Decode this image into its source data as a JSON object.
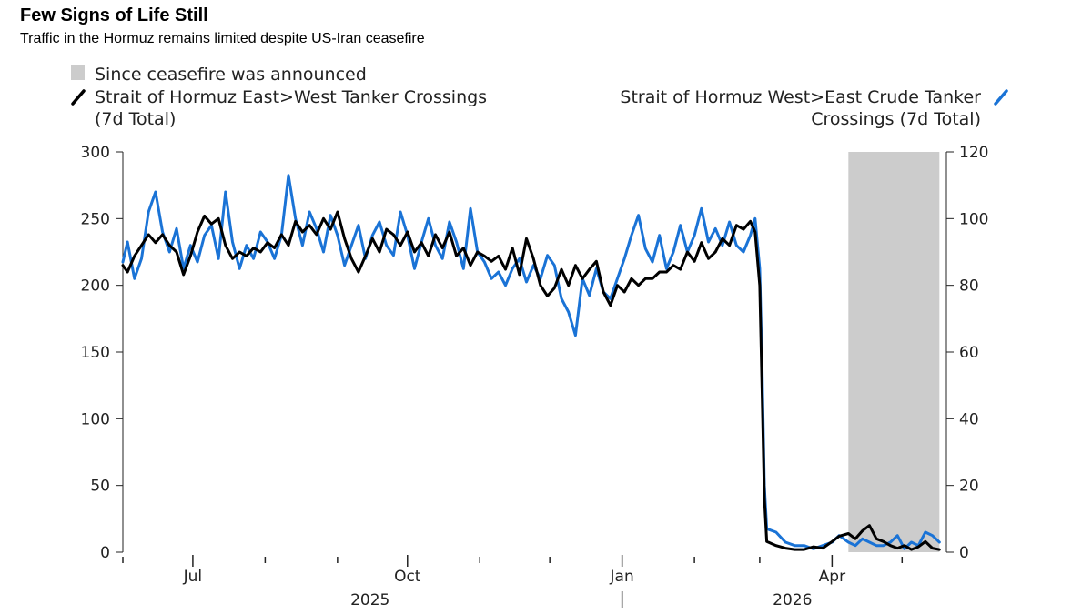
{
  "header": {
    "title": "Few Signs of Life Still",
    "subtitle": "Traffic in the Hormuz remains limited despite US-Iran ceasefire"
  },
  "chart_data": {
    "type": "line",
    "legend": {
      "shade": "Since ceasefire was announced",
      "left_series": [
        "Strait of Hormuz East>West Tanker Crossings",
        "(7d Total)"
      ],
      "right_series": [
        "Strait of Hormuz West>East Crude Tanker",
        "Crossings (7d Total)"
      ]
    },
    "colors": {
      "left": "#000000",
      "right": "#1a73d6",
      "shade": "#cccccc"
    },
    "x_range": [
      "2025-06-01",
      "2026-05-20"
    ],
    "x_ticks": [
      {
        "date": "2025-07-01",
        "label": "Jul"
      },
      {
        "date": "2025-10-01",
        "label": "Oct"
      },
      {
        "date": "2026-01-01",
        "label": "Jan"
      },
      {
        "date": "2026-04-01",
        "label": "Apr"
      }
    ],
    "x_minor_ticks": [
      "2025-06-01",
      "2025-08-01",
      "2025-09-01",
      "2025-11-01",
      "2025-12-01",
      "2026-02-01",
      "2026-03-01",
      "2026-05-01"
    ],
    "year_labels": [
      {
        "date": "2025-09-15",
        "label": "2025"
      },
      {
        "date": "2026-03-15",
        "label": "2026"
      }
    ],
    "year_divider": "2026-01-01",
    "y_left": {
      "range": [
        0,
        300
      ],
      "ticks": [
        0,
        50,
        100,
        150,
        200,
        250,
        300
      ]
    },
    "y_right": {
      "range": [
        0,
        120
      ],
      "ticks": [
        0,
        20,
        40,
        60,
        80,
        100,
        120
      ]
    },
    "shaded_period": [
      "2026-04-08",
      "2026-05-17"
    ],
    "series": [
      {
        "axis": "left",
        "points": [
          [
            "2025-06-01",
            215
          ],
          [
            "2025-06-03",
            210
          ],
          [
            "2025-06-06",
            222
          ],
          [
            "2025-06-09",
            230
          ],
          [
            "2025-06-12",
            238
          ],
          [
            "2025-06-15",
            232
          ],
          [
            "2025-06-18",
            238
          ],
          [
            "2025-06-21",
            230
          ],
          [
            "2025-06-24",
            225
          ],
          [
            "2025-06-27",
            208
          ],
          [
            "2025-06-30",
            222
          ],
          [
            "2025-07-03",
            240
          ],
          [
            "2025-07-06",
            252
          ],
          [
            "2025-07-09",
            246
          ],
          [
            "2025-07-12",
            250
          ],
          [
            "2025-07-15",
            230
          ],
          [
            "2025-07-18",
            220
          ],
          [
            "2025-07-21",
            225
          ],
          [
            "2025-07-24",
            222
          ],
          [
            "2025-07-27",
            228
          ],
          [
            "2025-07-30",
            225
          ],
          [
            "2025-08-02",
            232
          ],
          [
            "2025-08-05",
            228
          ],
          [
            "2025-08-08",
            238
          ],
          [
            "2025-08-11",
            230
          ],
          [
            "2025-08-14",
            248
          ],
          [
            "2025-08-17",
            240
          ],
          [
            "2025-08-20",
            245
          ],
          [
            "2025-08-23",
            238
          ],
          [
            "2025-08-26",
            250
          ],
          [
            "2025-08-29",
            242
          ],
          [
            "2025-09-01",
            255
          ],
          [
            "2025-09-04",
            235
          ],
          [
            "2025-09-07",
            220
          ],
          [
            "2025-09-10",
            210
          ],
          [
            "2025-09-13",
            222
          ],
          [
            "2025-09-16",
            235
          ],
          [
            "2025-09-19",
            225
          ],
          [
            "2025-09-22",
            242
          ],
          [
            "2025-09-25",
            238
          ],
          [
            "2025-09-28",
            230
          ],
          [
            "2025-10-01",
            240
          ],
          [
            "2025-10-04",
            225
          ],
          [
            "2025-10-07",
            232
          ],
          [
            "2025-10-10",
            222
          ],
          [
            "2025-10-13",
            238
          ],
          [
            "2025-10-16",
            228
          ],
          [
            "2025-10-19",
            240
          ],
          [
            "2025-10-22",
            222
          ],
          [
            "2025-10-25",
            228
          ],
          [
            "2025-10-28",
            215
          ],
          [
            "2025-10-31",
            225
          ],
          [
            "2025-11-03",
            222
          ],
          [
            "2025-11-06",
            218
          ],
          [
            "2025-11-09",
            222
          ],
          [
            "2025-11-12",
            212
          ],
          [
            "2025-11-15",
            228
          ],
          [
            "2025-11-18",
            208
          ],
          [
            "2025-11-21",
            235
          ],
          [
            "2025-11-24",
            220
          ],
          [
            "2025-11-27",
            200
          ],
          [
            "2025-11-30",
            192
          ],
          [
            "2025-12-03",
            198
          ],
          [
            "2025-12-06",
            212
          ],
          [
            "2025-12-09",
            200
          ],
          [
            "2025-12-12",
            215
          ],
          [
            "2025-12-15",
            205
          ],
          [
            "2025-12-18",
            212
          ],
          [
            "2025-12-21",
            218
          ],
          [
            "2025-12-24",
            195
          ],
          [
            "2025-12-27",
            185
          ],
          [
            "2025-12-30",
            200
          ],
          [
            "2026-01-02",
            195
          ],
          [
            "2026-01-05",
            205
          ],
          [
            "2026-01-08",
            200
          ],
          [
            "2026-01-11",
            205
          ],
          [
            "2026-01-14",
            205
          ],
          [
            "2026-01-17",
            210
          ],
          [
            "2026-01-20",
            210
          ],
          [
            "2026-01-23",
            215
          ],
          [
            "2026-01-26",
            212
          ],
          [
            "2026-01-29",
            225
          ],
          [
            "2026-02-01",
            218
          ],
          [
            "2026-02-04",
            232
          ],
          [
            "2026-02-07",
            220
          ],
          [
            "2026-02-10",
            225
          ],
          [
            "2026-02-13",
            235
          ],
          [
            "2026-02-16",
            230
          ],
          [
            "2026-02-19",
            245
          ],
          [
            "2026-02-22",
            242
          ],
          [
            "2026-02-25",
            248
          ],
          [
            "2026-02-27",
            240
          ],
          [
            "2026-03-01",
            200
          ],
          [
            "2026-03-02",
            120
          ],
          [
            "2026-03-03",
            40
          ],
          [
            "2026-03-04",
            8
          ],
          [
            "2026-03-08",
            5
          ],
          [
            "2026-03-12",
            3
          ],
          [
            "2026-03-16",
            2
          ],
          [
            "2026-03-20",
            2
          ],
          [
            "2026-03-24",
            4
          ],
          [
            "2026-03-28",
            3
          ],
          [
            "2026-04-01",
            8
          ],
          [
            "2026-04-04",
            12
          ],
          [
            "2026-04-08",
            14
          ],
          [
            "2026-04-11",
            10
          ],
          [
            "2026-04-14",
            16
          ],
          [
            "2026-04-17",
            20
          ],
          [
            "2026-04-20",
            10
          ],
          [
            "2026-04-23",
            8
          ],
          [
            "2026-04-26",
            5
          ],
          [
            "2026-04-29",
            3
          ],
          [
            "2026-05-02",
            5
          ],
          [
            "2026-05-05",
            2
          ],
          [
            "2026-05-08",
            4
          ],
          [
            "2026-05-11",
            8
          ],
          [
            "2026-05-14",
            3
          ],
          [
            "2026-05-17",
            2
          ]
        ]
      },
      {
        "axis": "right",
        "points": [
          [
            "2025-06-01",
            87
          ],
          [
            "2025-06-03",
            93
          ],
          [
            "2025-06-06",
            82
          ],
          [
            "2025-06-09",
            88
          ],
          [
            "2025-06-12",
            102
          ],
          [
            "2025-06-15",
            108
          ],
          [
            "2025-06-18",
            96
          ],
          [
            "2025-06-21",
            90
          ],
          [
            "2025-06-24",
            97
          ],
          [
            "2025-06-27",
            85
          ],
          [
            "2025-06-30",
            92
          ],
          [
            "2025-07-03",
            87
          ],
          [
            "2025-07-06",
            95
          ],
          [
            "2025-07-09",
            98
          ],
          [
            "2025-07-12",
            88
          ],
          [
            "2025-07-15",
            108
          ],
          [
            "2025-07-18",
            93
          ],
          [
            "2025-07-21",
            85
          ],
          [
            "2025-07-24",
            92
          ],
          [
            "2025-07-27",
            88
          ],
          [
            "2025-07-30",
            96
          ],
          [
            "2025-08-02",
            93
          ],
          [
            "2025-08-05",
            88
          ],
          [
            "2025-08-08",
            95
          ],
          [
            "2025-08-11",
            113
          ],
          [
            "2025-08-14",
            100
          ],
          [
            "2025-08-17",
            92
          ],
          [
            "2025-08-20",
            102
          ],
          [
            "2025-08-23",
            97
          ],
          [
            "2025-08-26",
            90
          ],
          [
            "2025-08-29",
            101
          ],
          [
            "2025-09-01",
            95
          ],
          [
            "2025-09-04",
            86
          ],
          [
            "2025-09-07",
            92
          ],
          [
            "2025-09-10",
            98
          ],
          [
            "2025-09-13",
            88
          ],
          [
            "2025-09-16",
            95
          ],
          [
            "2025-09-19",
            99
          ],
          [
            "2025-09-22",
            92
          ],
          [
            "2025-09-25",
            89
          ],
          [
            "2025-09-28",
            102
          ],
          [
            "2025-10-01",
            95
          ],
          [
            "2025-10-04",
            85
          ],
          [
            "2025-10-07",
            93
          ],
          [
            "2025-10-10",
            100
          ],
          [
            "2025-10-13",
            92
          ],
          [
            "2025-10-16",
            88
          ],
          [
            "2025-10-19",
            99
          ],
          [
            "2025-10-22",
            93
          ],
          [
            "2025-10-25",
            85
          ],
          [
            "2025-10-28",
            103
          ],
          [
            "2025-10-31",
            90
          ],
          [
            "2025-11-03",
            87
          ],
          [
            "2025-11-06",
            82
          ],
          [
            "2025-11-09",
            84
          ],
          [
            "2025-11-12",
            80
          ],
          [
            "2025-11-15",
            85
          ],
          [
            "2025-11-18",
            88
          ],
          [
            "2025-11-21",
            81
          ],
          [
            "2025-11-24",
            86
          ],
          [
            "2025-11-27",
            82
          ],
          [
            "2025-11-30",
            89
          ],
          [
            "2025-12-03",
            86
          ],
          [
            "2025-12-06",
            76
          ],
          [
            "2025-12-09",
            72
          ],
          [
            "2025-12-12",
            65
          ],
          [
            "2025-12-15",
            82
          ],
          [
            "2025-12-18",
            77
          ],
          [
            "2025-12-21",
            85
          ],
          [
            "2025-12-24",
            78
          ],
          [
            "2025-12-27",
            76
          ],
          [
            "2025-12-30",
            82
          ],
          [
            "2026-01-02",
            88
          ],
          [
            "2026-01-05",
            95
          ],
          [
            "2026-01-08",
            101
          ],
          [
            "2026-01-11",
            91
          ],
          [
            "2026-01-14",
            87
          ],
          [
            "2026-01-17",
            95
          ],
          [
            "2026-01-20",
            85
          ],
          [
            "2026-01-23",
            90
          ],
          [
            "2026-01-26",
            98
          ],
          [
            "2026-01-29",
            90
          ],
          [
            "2026-02-01",
            95
          ],
          [
            "2026-02-04",
            103
          ],
          [
            "2026-02-07",
            93
          ],
          [
            "2026-02-10",
            97
          ],
          [
            "2026-02-13",
            92
          ],
          [
            "2026-02-16",
            99
          ],
          [
            "2026-02-19",
            92
          ],
          [
            "2026-02-22",
            90
          ],
          [
            "2026-02-25",
            95
          ],
          [
            "2026-02-27",
            100
          ],
          [
            "2026-03-01",
            85
          ],
          [
            "2026-03-02",
            55
          ],
          [
            "2026-03-03",
            20
          ],
          [
            "2026-03-04",
            7
          ],
          [
            "2026-03-08",
            6
          ],
          [
            "2026-03-12",
            3
          ],
          [
            "2026-03-16",
            2
          ],
          [
            "2026-03-20",
            2
          ],
          [
            "2026-03-24",
            1
          ],
          [
            "2026-03-28",
            2
          ],
          [
            "2026-04-01",
            3
          ],
          [
            "2026-04-04",
            5
          ],
          [
            "2026-04-08",
            3
          ],
          [
            "2026-04-11",
            2
          ],
          [
            "2026-04-14",
            4
          ],
          [
            "2026-04-17",
            3
          ],
          [
            "2026-04-20",
            2
          ],
          [
            "2026-04-23",
            2
          ],
          [
            "2026-04-26",
            3
          ],
          [
            "2026-04-29",
            5
          ],
          [
            "2026-05-02",
            1
          ],
          [
            "2026-05-05",
            3
          ],
          [
            "2026-05-08",
            2
          ],
          [
            "2026-05-11",
            6
          ],
          [
            "2026-05-14",
            5
          ],
          [
            "2026-05-17",
            3
          ]
        ]
      }
    ]
  }
}
